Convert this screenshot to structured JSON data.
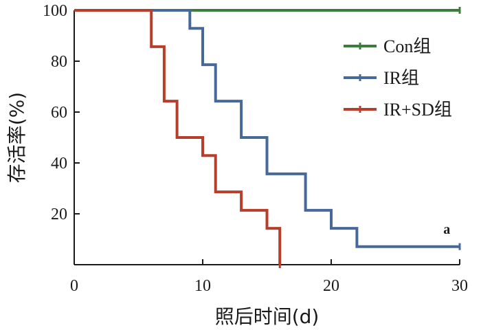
{
  "chart_data": {
    "type": "line",
    "xlabel": "照后时间(d)",
    "ylabel": "存活率(%)",
    "xlim": [
      0,
      30
    ],
    "ylim": [
      0,
      100
    ],
    "xticks": [
      0,
      10,
      20,
      30
    ],
    "yticks": [
      20,
      40,
      60,
      80,
      100
    ],
    "grid": false,
    "legend_position": "top-right",
    "step": true,
    "series": [
      {
        "name": "Con组",
        "color": "#3b7d3b",
        "x": [
          0,
          30
        ],
        "y": [
          100,
          100
        ]
      },
      {
        "name": "IR组",
        "color": "#46699a",
        "x": [
          0,
          9,
          10,
          11,
          13,
          15,
          18,
          20,
          22,
          30
        ],
        "y": [
          100,
          92.9,
          78.6,
          64.3,
          50,
          35.7,
          21.4,
          14.3,
          7.1,
          7.1
        ]
      },
      {
        "name": "IR+SD组",
        "color": "#b83e2b",
        "x": [
          0,
          6,
          7,
          7.5,
          8,
          10,
          11,
          13,
          15,
          16
        ],
        "y": [
          100,
          85.7,
          64.3,
          64.3,
          50,
          42.9,
          28.6,
          21.4,
          14.3,
          0
        ]
      }
    ],
    "annotations": [
      {
        "text": "a",
        "x": 29,
        "y": 14
      }
    ]
  }
}
